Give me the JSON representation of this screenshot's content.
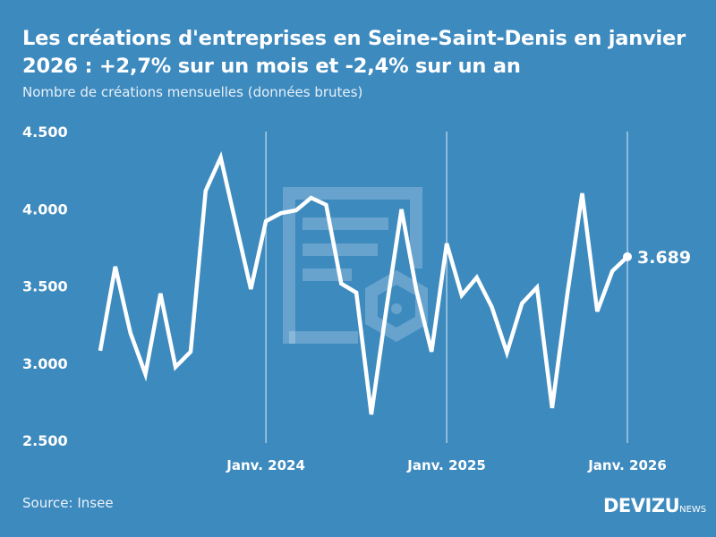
{
  "title": "Les créations d'entreprises en Seine-Saint-Denis en janvier 2026 : +2,7% sur un mois et -2,4% sur un an",
  "subtitle": "Nombre de créations mensuelles (données brutes)",
  "source": "Source: Insee",
  "logo": {
    "main": "DEVIZU",
    "suffix": "NEWS"
  },
  "colors": {
    "background": "#3d8abf",
    "line": "#ffffff"
  },
  "chart_data": {
    "type": "line",
    "title": "Les créations d'entreprises en Seine-Saint-Denis en janvier 2026 : +2,7% sur un mois et -2,4% sur un an",
    "subtitle": "Nombre de créations mensuelles (données brutes)",
    "x": [
      "2023-02",
      "2023-03",
      "2023-04",
      "2023-05",
      "2023-06",
      "2023-07",
      "2023-08",
      "2023-09",
      "2023-10",
      "2023-11",
      "2023-12",
      "2024-01",
      "2024-02",
      "2024-03",
      "2024-04",
      "2024-05",
      "2024-06",
      "2024-07",
      "2024-08",
      "2024-09",
      "2024-10",
      "2024-11",
      "2024-12",
      "2025-01",
      "2025-02",
      "2025-03",
      "2025-04",
      "2025-05",
      "2025-06",
      "2025-07",
      "2025-08",
      "2025-09",
      "2025-10",
      "2025-11",
      "2025-12",
      "2026-01"
    ],
    "values": [
      3080,
      3625,
      3196,
      2929,
      3451,
      2975,
      3074,
      4117,
      4332,
      3903,
      3480,
      3920,
      3972,
      3990,
      4071,
      4025,
      3515,
      3457,
      2668,
      3352,
      3996,
      3468,
      3074,
      3775,
      3439,
      3555,
      3364,
      3068,
      3387,
      3491,
      2709,
      3439,
      4100,
      3335,
      3596,
      3689
    ],
    "ylim": [
      2500,
      4500
    ],
    "yticks": [
      {
        "value": 4500,
        "label": "4.500"
      },
      {
        "value": 4000,
        "label": "4.000"
      },
      {
        "value": 3500,
        "label": "3.500"
      },
      {
        "value": 3000,
        "label": "3.000"
      },
      {
        "value": 2500,
        "label": "2.500"
      }
    ],
    "xticks": [
      {
        "x": "2024-01",
        "label": "Janv. 2024"
      },
      {
        "x": "2025-01",
        "label": "Janv. 2025"
      },
      {
        "x": "2026-01",
        "label": "Janv. 2026"
      }
    ],
    "last_label": "3.689",
    "grid": "vertical lines at January"
  }
}
